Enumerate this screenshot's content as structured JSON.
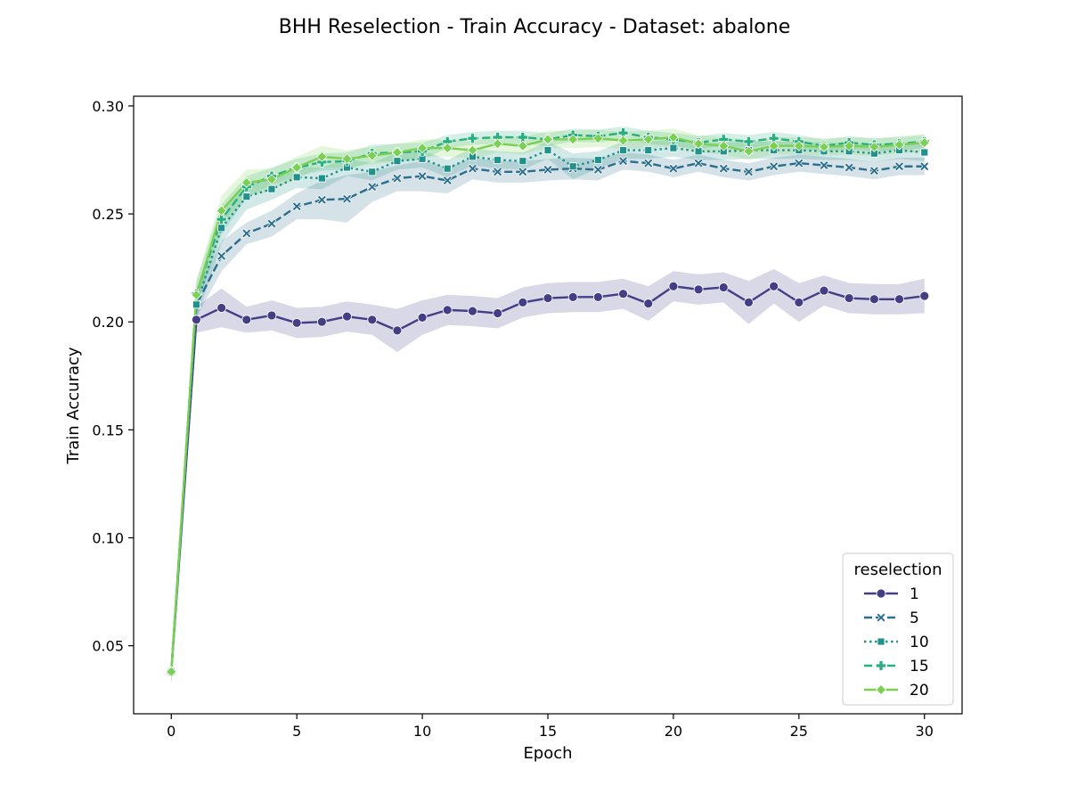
{
  "chart_data": {
    "type": "line",
    "title": "BHH Reselection - Train Accuracy - Dataset: abalone",
    "xlabel": "Epoch",
    "ylabel": "Train Accuracy",
    "xlim": [
      -1.5,
      31.5
    ],
    "ylim": [
      0.0185,
      0.3045
    ],
    "xticks": [
      0,
      5,
      10,
      15,
      20,
      25,
      30
    ],
    "yticks": [
      0.05,
      0.1,
      0.15,
      0.2,
      0.25,
      0.3
    ],
    "xtick_labels": [
      "0",
      "5",
      "10",
      "15",
      "20",
      "25",
      "30"
    ],
    "ytick_labels": [
      "0.05",
      "0.10",
      "0.15",
      "0.20",
      "0.25",
      "0.30"
    ],
    "grid": false,
    "legend": {
      "title": "reselection",
      "position": "lower right"
    },
    "x": [
      0,
      1,
      2,
      3,
      4,
      5,
      6,
      7,
      8,
      9,
      10,
      11,
      12,
      13,
      14,
      15,
      16,
      17,
      18,
      19,
      20,
      21,
      22,
      23,
      24,
      25,
      26,
      27,
      28,
      29,
      30
    ],
    "series": [
      {
        "name": "1",
        "color": "#433e85",
        "dash": "solid",
        "marker": "circle",
        "values": [
          0.038,
          0.201,
          0.2065,
          0.201,
          0.203,
          0.1995,
          0.2,
          0.2025,
          0.201,
          0.196,
          0.202,
          0.2055,
          0.205,
          0.204,
          0.209,
          0.211,
          0.2115,
          0.2115,
          0.213,
          0.2085,
          0.2165,
          0.215,
          0.216,
          0.209,
          0.2165,
          0.209,
          0.2145,
          0.211,
          0.2105,
          0.2105,
          0.212
        ],
        "band": [
          0.006,
          0.006,
          0.009,
          0.006,
          0.007,
          0.007,
          0.007,
          0.007,
          0.007,
          0.01,
          0.008,
          0.007,
          0.007,
          0.007,
          0.007,
          0.007,
          0.007,
          0.007,
          0.007,
          0.008,
          0.007,
          0.007,
          0.007,
          0.01,
          0.008,
          0.009,
          0.007,
          0.007,
          0.007,
          0.007,
          0.008
        ]
      },
      {
        "name": "5",
        "color": "#2c6e8e",
        "dash": "dashed",
        "marker": "x",
        "values": [
          0.038,
          0.208,
          0.2305,
          0.241,
          0.2455,
          0.2535,
          0.2565,
          0.257,
          0.2625,
          0.2665,
          0.2675,
          0.2655,
          0.271,
          0.2695,
          0.2695,
          0.2705,
          0.271,
          0.2705,
          0.2745,
          0.2735,
          0.271,
          0.2735,
          0.271,
          0.2695,
          0.272,
          0.2735,
          0.2725,
          0.2715,
          0.27,
          0.272,
          0.272
        ],
        "band": [
          0.005,
          0.006,
          0.007,
          0.005,
          0.006,
          0.006,
          0.009,
          0.011,
          0.007,
          0.006,
          0.007,
          0.006,
          0.005,
          0.005,
          0.005,
          0.005,
          0.005,
          0.005,
          0.004,
          0.004,
          0.004,
          0.004,
          0.004,
          0.004,
          0.004,
          0.004,
          0.004,
          0.004,
          0.004,
          0.004,
          0.004
        ]
      },
      {
        "name": "10",
        "color": "#21918c",
        "dash": "dotted",
        "marker": "square",
        "values": [
          0.038,
          0.208,
          0.2435,
          0.258,
          0.2615,
          0.267,
          0.2665,
          0.2715,
          0.2695,
          0.2745,
          0.2755,
          0.271,
          0.2765,
          0.275,
          0.2745,
          0.2795,
          0.272,
          0.275,
          0.2795,
          0.2795,
          0.2805,
          0.279,
          0.279,
          0.2795,
          0.2795,
          0.2795,
          0.279,
          0.279,
          0.278,
          0.2795,
          0.2785
        ],
        "band": [
          0.005,
          0.007,
          0.007,
          0.006,
          0.005,
          0.005,
          0.005,
          0.004,
          0.004,
          0.004,
          0.004,
          0.004,
          0.004,
          0.004,
          0.004,
          0.004,
          0.006,
          0.004,
          0.004,
          0.004,
          0.004,
          0.004,
          0.004,
          0.004,
          0.004,
          0.004,
          0.004,
          0.004,
          0.004,
          0.004,
          0.004
        ]
      },
      {
        "name": "15",
        "color": "#28ae80",
        "dash": "dashed",
        "marker": "plus",
        "values": [
          0.038,
          0.213,
          0.2475,
          0.2625,
          0.2675,
          0.2715,
          0.274,
          0.2745,
          0.278,
          0.2785,
          0.279,
          0.2835,
          0.285,
          0.2855,
          0.2855,
          0.2845,
          0.2865,
          0.286,
          0.2875,
          0.2855,
          0.2845,
          0.283,
          0.2845,
          0.2835,
          0.285,
          0.2835,
          0.2815,
          0.283,
          0.282,
          0.2825,
          0.2835
        ],
        "band": [
          0.005,
          0.006,
          0.007,
          0.005,
          0.004,
          0.004,
          0.004,
          0.004,
          0.004,
          0.004,
          0.004,
          0.003,
          0.003,
          0.003,
          0.003,
          0.003,
          0.003,
          0.003,
          0.003,
          0.003,
          0.003,
          0.003,
          0.003,
          0.003,
          0.003,
          0.003,
          0.003,
          0.003,
          0.003,
          0.003,
          0.003
        ]
      },
      {
        "name": "20",
        "color": "#7ad151",
        "dash": "solid",
        "marker": "diamond",
        "values": [
          0.038,
          0.2125,
          0.2515,
          0.2645,
          0.266,
          0.2715,
          0.2765,
          0.2755,
          0.277,
          0.2785,
          0.2805,
          0.2805,
          0.2795,
          0.2825,
          0.2815,
          0.2845,
          0.2845,
          0.285,
          0.284,
          0.2845,
          0.2855,
          0.2825,
          0.2815,
          0.279,
          0.2815,
          0.2815,
          0.281,
          0.2815,
          0.281,
          0.282,
          0.283
        ],
        "band": [
          0.005,
          0.007,
          0.007,
          0.006,
          0.005,
          0.005,
          0.005,
          0.004,
          0.004,
          0.004,
          0.004,
          0.004,
          0.004,
          0.004,
          0.004,
          0.004,
          0.004,
          0.004,
          0.004,
          0.004,
          0.004,
          0.004,
          0.004,
          0.004,
          0.004,
          0.004,
          0.004,
          0.004,
          0.004,
          0.004,
          0.004
        ]
      }
    ]
  }
}
